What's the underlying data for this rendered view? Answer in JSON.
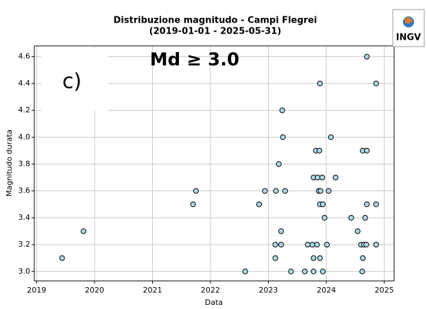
{
  "chart_data": {
    "type": "scatter",
    "title": "Distribuzione magnitudo - Campi Flegrei",
    "subtitle": "(2019-01-01 - 2025-05-31)",
    "xlabel": "Data",
    "ylabel": "Magnitudo durata",
    "annotations": [
      "c)",
      "Md ≥ 3.0",
      "INGV"
    ],
    "color": "#add8e6",
    "edgecolor": "#000000",
    "grid": true,
    "xlim": [
      2018.96,
      2025.17
    ],
    "ylim": [
      2.93,
      4.68
    ],
    "xticks": [
      2019,
      2020,
      2021,
      2022,
      2023,
      2024,
      2025
    ],
    "yticks": [
      {
        "value": 3,
        "label": "3.0"
      },
      {
        "value": 3.2,
        "label": "3.2"
      },
      {
        "value": 3.4,
        "label": "3.4"
      },
      {
        "value": 3.6,
        "label": "3.6"
      },
      {
        "value": 3.8,
        "label": "3.8"
      },
      {
        "value": 4,
        "label": "4.0"
      },
      {
        "value": 4.2,
        "label": "4.2"
      },
      {
        "value": 4.4,
        "label": "4.4"
      },
      {
        "value": 4.6,
        "label": "4.6"
      }
    ],
    "x": [
      2019.44,
      2019.81,
      2021.7,
      2021.75,
      2022.6,
      2022.84,
      2022.94,
      2023.12,
      2023.13,
      2023.12,
      2023.18,
      2023.22,
      2023.22,
      2023.24,
      2023.25,
      2023.29,
      2023.39,
      2023.63,
      2023.68,
      2023.76,
      2023.78,
      2023.78,
      2023.78,
      2023.82,
      2023.84,
      2023.85,
      2023.87,
      2023.88,
      2023.89,
      2023.89,
      2023.89,
      2023.9,
      2023.93,
      2023.94,
      2023.94,
      2023.97,
      2024.01,
      2024.04,
      2024.08,
      2024.16,
      2024.43,
      2024.54,
      2024.6,
      2024.62,
      2024.63,
      2024.63,
      2024.65,
      2024.67,
      2024.69,
      2024.7,
      2024.7,
      2024.7,
      2024.86,
      2024.86,
      2024.86
    ],
    "values": [
      3.1,
      3.3,
      3.5,
      3.6,
      3.0,
      3.5,
      3.6,
      3.1,
      3.6,
      3.2,
      3.8,
      3.2,
      3.3,
      4.2,
      4.0,
      3.6,
      3.0,
      3.0,
      3.2,
      3.2,
      3.0,
      3.7,
      3.1,
      3.9,
      3.2,
      3.7,
      3.6,
      3.9,
      3.5,
      4.4,
      3.1,
      3.6,
      3.7,
      3.5,
      3.0,
      3.4,
      3.2,
      3.6,
      4.0,
      3.7,
      3.4,
      3.3,
      3.2,
      3.0,
      3.9,
      3.1,
      3.2,
      3.4,
      3.2,
      4.6,
      3.5,
      3.9,
      3.5,
      4.4,
      3.2
    ]
  }
}
